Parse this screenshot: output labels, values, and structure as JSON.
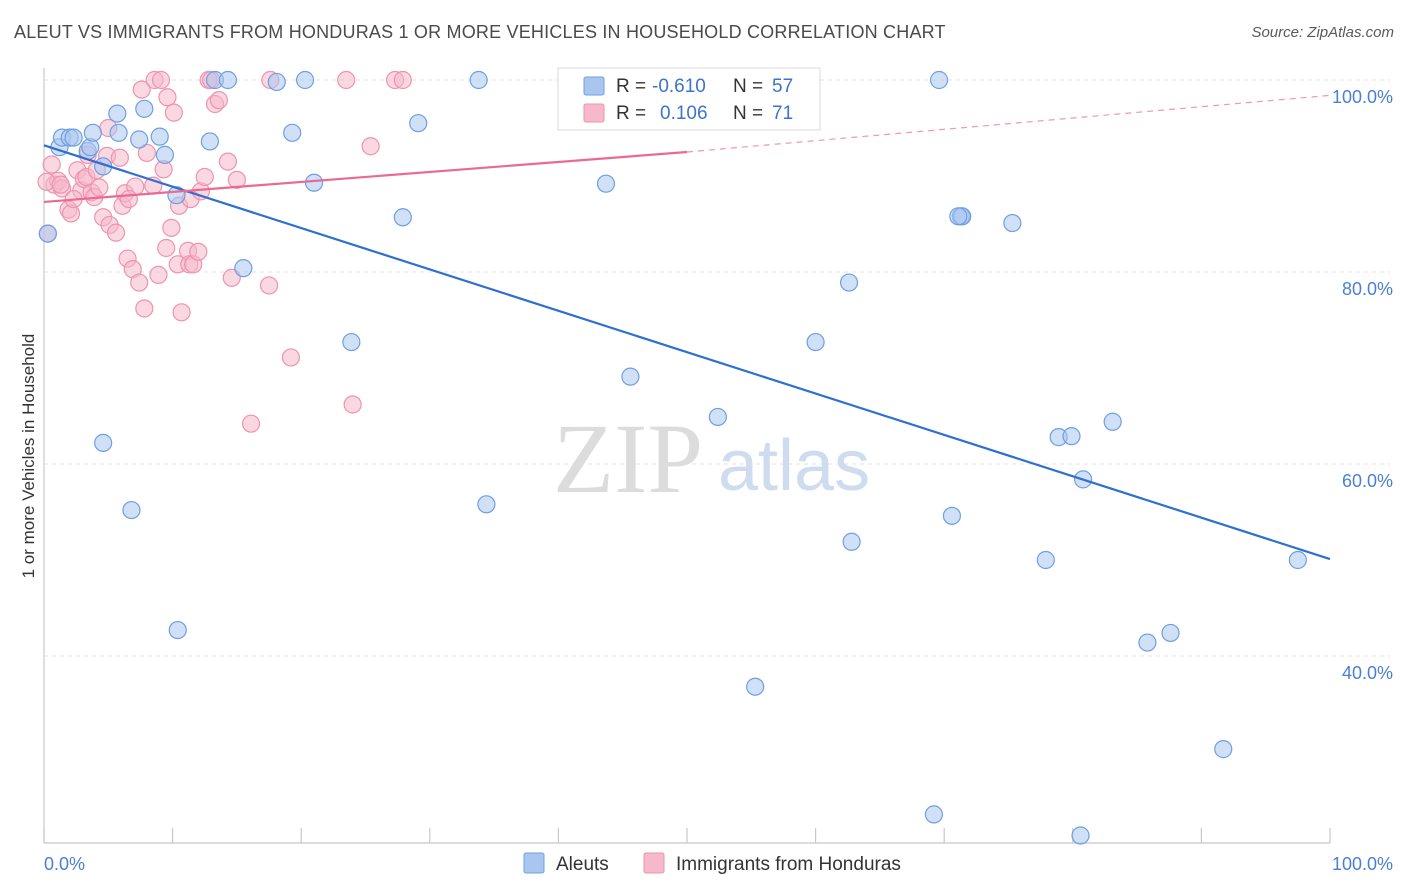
{
  "title": "ALEUT VS IMMIGRANTS FROM HONDURAS 1 OR MORE VEHICLES IN HOUSEHOLD CORRELATION CHART",
  "source": "Source: ZipAtlas.com",
  "watermark": {
    "zip": "ZIP",
    "atlas": "atlas"
  },
  "legend_box": {
    "rows": [
      {
        "r_label": "R =",
        "r_value": "-0.610",
        "n_label": "N =",
        "n_value": "57",
        "color": "#a9c6f0"
      },
      {
        "r_label": "R =",
        "r_value": "0.106",
        "n_label": "N =",
        "n_value": "71",
        "color": "#f6b8cb"
      }
    ]
  },
  "bottom_legend": [
    {
      "label": "Aleuts",
      "color": "#a9c6f0"
    },
    {
      "label": "Immigrants from Honduras",
      "color": "#f6b8cb"
    }
  ],
  "chart_data": {
    "type": "scatter",
    "title": "ALEUT VS IMMIGRANTS FROM HONDURAS 1 OR MORE VEHICLES IN HOUSEHOLD CORRELATION CHART",
    "xlabel": "",
    "ylabel": "1 or more Vehicles in Household",
    "xlim": [
      0,
      100
    ],
    "ylim": [
      20,
      102
    ],
    "x_tick_labels": [
      "0.0%",
      "100.0%"
    ],
    "y_ticks": [
      40,
      60,
      80,
      100
    ],
    "y_tick_labels": [
      "40.0%",
      "60.0%",
      "80.0%",
      "100.0%"
    ],
    "grid": true,
    "legend_position": "bottom",
    "colors": {
      "aleuts_fill": "#a9c6f0",
      "aleuts_stroke": "#6f9fe0",
      "aleuts_line": "#2e6fd1",
      "honduras_fill": "#f6b8cb",
      "honduras_stroke": "#ee93b0",
      "honduras_line": "#e96a93"
    },
    "series": [
      {
        "name": "Aleuts",
        "r": -0.61,
        "n": 57,
        "trend": {
          "x0": 0,
          "y0": 93.2,
          "x1": 100,
          "y1": 50.1
        },
        "points": [
          [
            0.3,
            84
          ],
          [
            1.2,
            93
          ],
          [
            1.4,
            94
          ],
          [
            2.0,
            94
          ],
          [
            2.3,
            94
          ],
          [
            3.4,
            92.6
          ],
          [
            3.6,
            93
          ],
          [
            3.8,
            94.5
          ],
          [
            4.6,
            91
          ],
          [
            5.7,
            96.5
          ],
          [
            5.8,
            94.5
          ],
          [
            7.4,
            93.8
          ],
          [
            7.8,
            97
          ],
          [
            9.0,
            94.1
          ],
          [
            9.4,
            92.2
          ],
          [
            10.3,
            88
          ],
          [
            12.9,
            93.6
          ],
          [
            13.3,
            100
          ],
          [
            14.3,
            100
          ],
          [
            15.5,
            80.4
          ],
          [
            18.1,
            99.8
          ],
          [
            19.3,
            94.5
          ],
          [
            20.3,
            100
          ],
          [
            21.0,
            89.3
          ],
          [
            23.9,
            72.7
          ],
          [
            27.9,
            85.7
          ],
          [
            29.1,
            95.5
          ],
          [
            33.8,
            100
          ],
          [
            43.7,
            89.2
          ],
          [
            45.6,
            69.1
          ],
          [
            52.4,
            64.9
          ],
          [
            56.4,
            100
          ],
          [
            60.0,
            72.7
          ],
          [
            62.6,
            78.9
          ],
          [
            69.6,
            100
          ],
          [
            71.3,
            85.8
          ],
          [
            71.4,
            85.8
          ],
          [
            75.3,
            85.1
          ],
          [
            78.9,
            62.8
          ],
          [
            79.9,
            62.9
          ],
          [
            80.8,
            58.4
          ],
          [
            83.1,
            64.4
          ],
          [
            97.5,
            50.0
          ],
          [
            4.6,
            62.2
          ],
          [
            6.8,
            55.2
          ],
          [
            10.4,
            42.7
          ],
          [
            34.4,
            55.8
          ],
          [
            62.8,
            51.9
          ],
          [
            70.6,
            54.6
          ],
          [
            77.9,
            50.0
          ],
          [
            85.8,
            41.4
          ],
          [
            87.6,
            42.4
          ],
          [
            55.3,
            36.8
          ],
          [
            91.7,
            30.3
          ],
          [
            69.2,
            23.5
          ],
          [
            80.6,
            21.3
          ],
          [
            71.1,
            85.8
          ]
        ]
      },
      {
        "name": "Immigrants from Honduras",
        "r": 0.106,
        "n": 71,
        "trend": {
          "x0": 0,
          "y0": 87.3,
          "x1": 50,
          "y1": 92.5,
          "dashed_to": {
            "x": 100,
            "y": 98.4
          }
        },
        "points": [
          [
            0.3,
            84
          ],
          [
            0.6,
            91.2
          ],
          [
            0.8,
            89.1
          ],
          [
            1.1,
            89.5
          ],
          [
            1.4,
            88.7
          ],
          [
            1.9,
            86.5
          ],
          [
            2.1,
            86.1
          ],
          [
            2.6,
            90.6
          ],
          [
            2.9,
            88.5
          ],
          [
            3.1,
            89.7
          ],
          [
            3.4,
            92.2
          ],
          [
            3.7,
            88.3
          ],
          [
            3.9,
            87.8
          ],
          [
            4.3,
            88.8
          ],
          [
            4.6,
            85.7
          ],
          [
            4.9,
            92.1
          ],
          [
            5.0,
            95
          ],
          [
            5.1,
            84.9
          ],
          [
            5.6,
            84.1
          ],
          [
            5.9,
            91.9
          ],
          [
            6.1,
            86.9
          ],
          [
            6.3,
            88.2
          ],
          [
            6.5,
            81.4
          ],
          [
            6.9,
            80.3
          ],
          [
            7.1,
            88.9
          ],
          [
            7.4,
            78.9
          ],
          [
            7.6,
            99
          ],
          [
            7.8,
            76.2
          ],
          [
            8.0,
            92.4
          ],
          [
            8.5,
            89.0
          ],
          [
            8.6,
            100
          ],
          [
            8.9,
            79.7
          ],
          [
            9.3,
            90.7
          ],
          [
            9.5,
            82.5
          ],
          [
            9.6,
            98.2
          ],
          [
            10.1,
            96.6
          ],
          [
            10.4,
            80.8
          ],
          [
            10.5,
            86.9
          ],
          [
            10.7,
            75.8
          ],
          [
            11.2,
            82.2
          ],
          [
            11.3,
            80.8
          ],
          [
            11.4,
            87.6
          ],
          [
            11.6,
            80.8
          ],
          [
            12.0,
            82.1
          ],
          [
            12.2,
            88.4
          ],
          [
            12.5,
            89.9
          ],
          [
            12.8,
            100
          ],
          [
            13.0,
            100
          ],
          [
            13.3,
            97.5
          ],
          [
            13.6,
            97.9
          ],
          [
            14.3,
            91.5
          ],
          [
            14.6,
            79.4
          ],
          [
            15.0,
            89.6
          ],
          [
            16.1,
            64.2
          ],
          [
            17.5,
            78.6
          ],
          [
            17.6,
            100
          ],
          [
            19.2,
            71.1
          ],
          [
            23.5,
            100
          ],
          [
            24.0,
            66.2
          ],
          [
            25.4,
            93.1
          ],
          [
            27.3,
            100
          ],
          [
            27.9,
            100
          ],
          [
            40.9,
            100
          ],
          [
            0.2,
            89.4
          ],
          [
            1.3,
            89.1
          ],
          [
            2.3,
            87.6
          ],
          [
            3.3,
            89.9
          ],
          [
            9.1,
            100
          ],
          [
            6.6,
            87.6
          ],
          [
            9.9,
            84.6
          ],
          [
            4.1,
            90.6
          ]
        ]
      }
    ]
  }
}
